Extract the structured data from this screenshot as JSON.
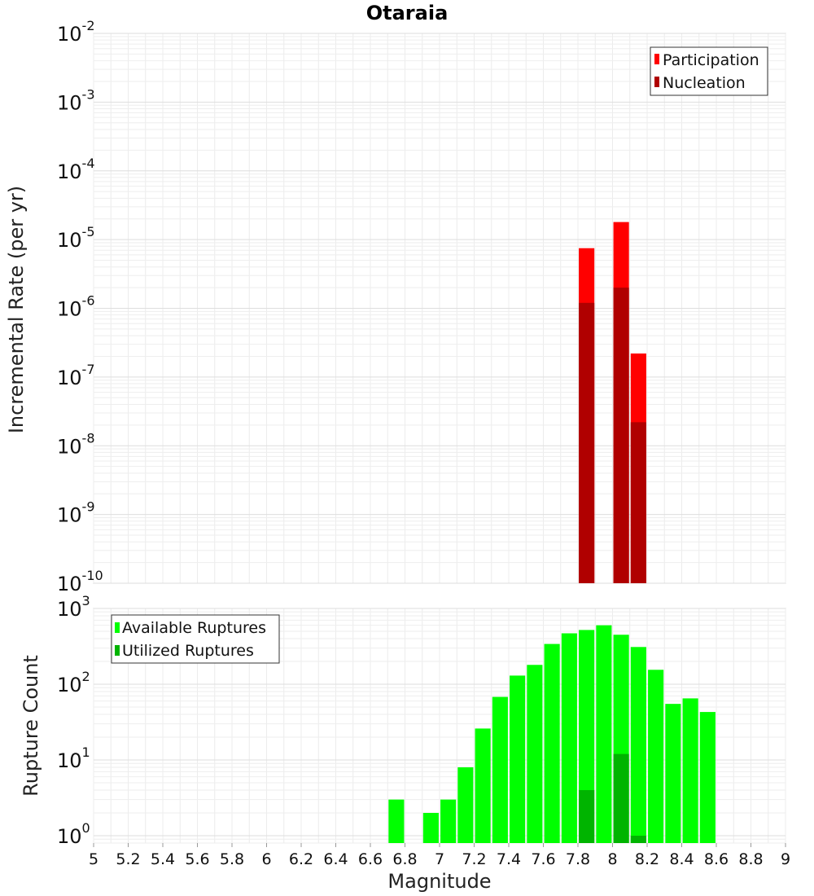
{
  "chart_data": [
    {
      "type": "bar",
      "title": "Otaraia",
      "xlabel": "",
      "ylabel": "Incremental Rate (per yr)",
      "y_scale": "log",
      "ylim": [
        1e-10,
        0.01
      ],
      "xlim": [
        5,
        9
      ],
      "grid": true,
      "legend_placement": "top-right",
      "bar_width": 0.09,
      "y_tick_base": "10",
      "y_tick_exponents": [
        "-10",
        "-9",
        "-8",
        "-7",
        "-6",
        "-5",
        "-4",
        "-3",
        "-2"
      ],
      "series": [
        {
          "name": "Participation",
          "color": "#ff0000",
          "x": [
            7.85,
            8.05,
            8.15
          ],
          "values": [
            7.5e-06,
            1.8e-05,
            2.2e-07
          ]
        },
        {
          "name": "Nucleation",
          "color": "#b00000",
          "x": [
            7.85,
            8.05,
            8.15
          ],
          "values": [
            1.2e-06,
            2e-06,
            2.2e-08
          ]
        }
      ]
    },
    {
      "type": "bar",
      "xlabel": "Magnitude",
      "ylabel": "Rupture Count",
      "y_scale": "log",
      "ylim": [
        0.8,
        1000
      ],
      "xlim": [
        5,
        9
      ],
      "grid": true,
      "legend_placement": "top-left",
      "bar_width": 0.09,
      "y_tick_base": "10",
      "y_tick_exponents": [
        "0",
        "1",
        "2",
        "3"
      ],
      "x_ticks": [
        "5",
        "5.2",
        "5.4",
        "5.6",
        "5.8",
        "6",
        "6.2",
        "6.4",
        "6.6",
        "6.8",
        "7",
        "7.2",
        "7.4",
        "7.6",
        "7.8",
        "8",
        "8.2",
        "8.4",
        "8.6",
        "8.8",
        "9"
      ],
      "series": [
        {
          "name": "Available Ruptures",
          "color": "#00ff00",
          "x": [
            6.75,
            6.95,
            7.05,
            7.15,
            7.25,
            7.35,
            7.45,
            7.55,
            7.65,
            7.75,
            7.85,
            7.95,
            8.05,
            8.15,
            8.25,
            8.35,
            8.45,
            8.55
          ],
          "values": [
            3,
            2,
            3,
            8,
            26,
            68,
            130,
            180,
            340,
            470,
            520,
            600,
            450,
            310,
            155,
            55,
            65,
            43
          ]
        },
        {
          "name": "Utilized Ruptures",
          "color": "#00b400",
          "x": [
            7.85,
            8.05,
            8.15
          ],
          "values": [
            4,
            12,
            1
          ]
        }
      ]
    }
  ]
}
